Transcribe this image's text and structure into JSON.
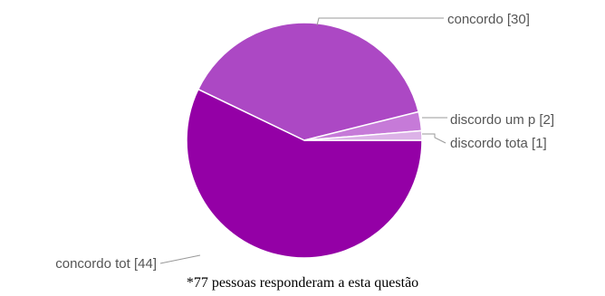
{
  "chart_data": {
    "type": "pie",
    "slices": [
      {
        "label": "concordo tot [44]",
        "value": 44,
        "color": "#9400a6"
      },
      {
        "label": "concordo [30]",
        "value": 30,
        "color": "#ac48c4"
      },
      {
        "label": "discordo um p [2]",
        "value": 2,
        "color": "#c67ad8"
      },
      {
        "label": "discordo tota [1]",
        "value": 1,
        "color": "#dcb2e7"
      }
    ],
    "leader_color": "#999999"
  },
  "caption": "*77 pessoas responderam a esta questão"
}
